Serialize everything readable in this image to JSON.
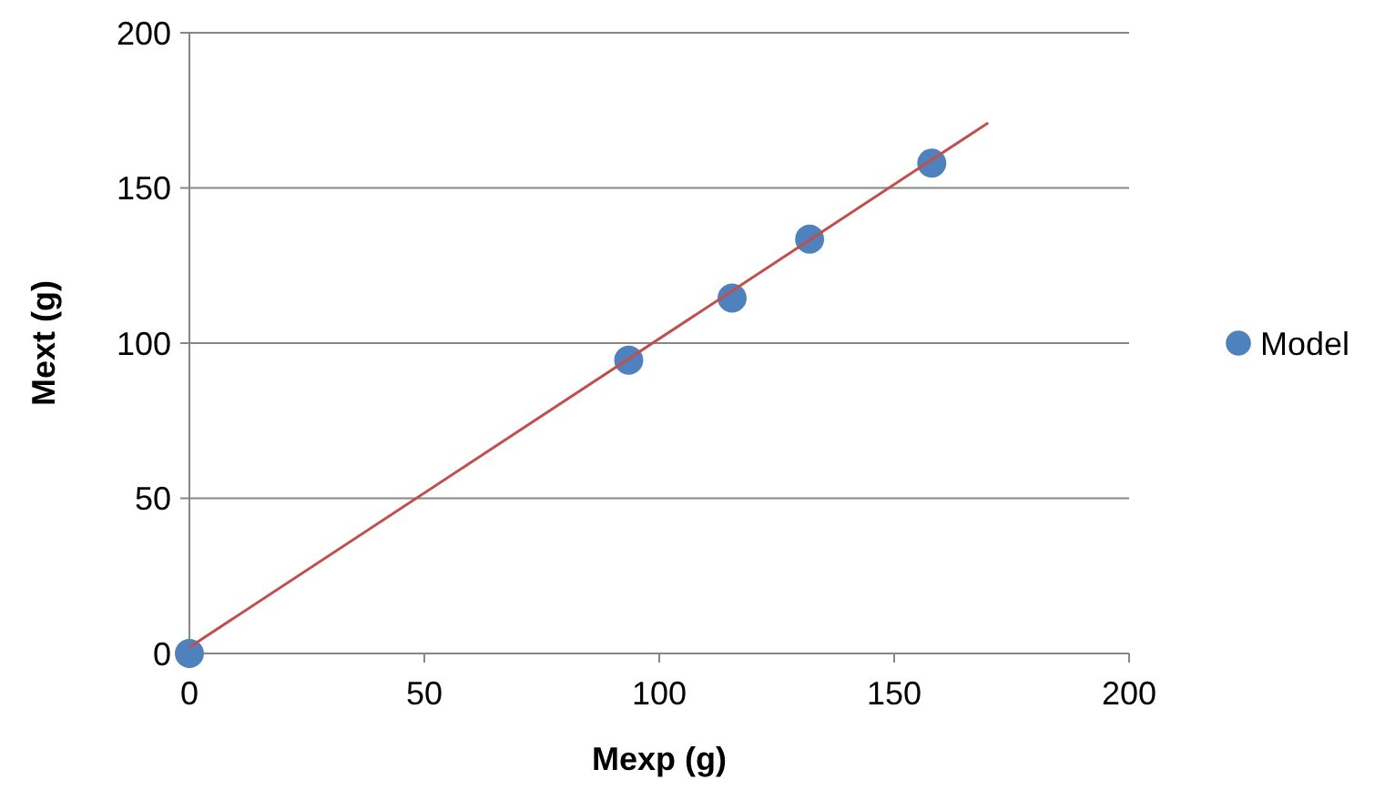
{
  "chart_data": {
    "type": "scatter",
    "xlabel": "Mexp (g)",
    "ylabel": "Mext (g)",
    "xlim": [
      0,
      200
    ],
    "xticks": [
      0,
      50,
      100,
      150,
      200
    ],
    "ylim": [
      0,
      200
    ],
    "yticks": [
      0,
      50,
      100,
      150,
      200
    ],
    "grid": "y",
    "legend": "right",
    "marker": "circle",
    "series": [
      {
        "name": "Model",
        "color": "#4f81bd",
        "x": [
          0,
          93.5,
          115.5,
          132,
          158
        ],
        "values": [
          0,
          94.5,
          114.5,
          133.5,
          158
        ]
      },
      {
        "type": "line",
        "marker": "none",
        "color": "#c0504d",
        "x": [
          0,
          170
        ],
        "values": [
          2,
          171
        ]
      }
    ]
  }
}
